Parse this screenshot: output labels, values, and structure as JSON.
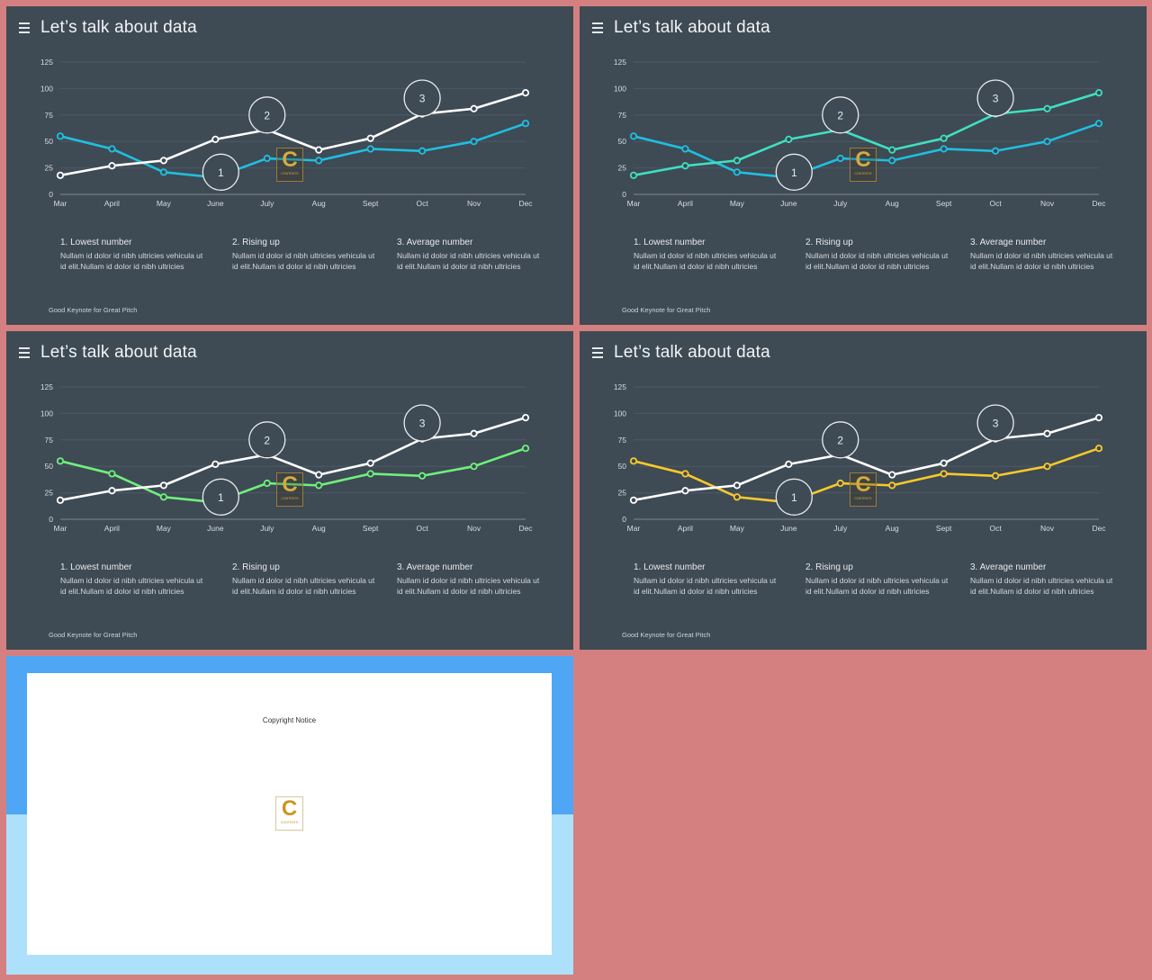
{
  "slides": [
    {
      "title": "Let’s talk about data",
      "footer": "Good Keynote for Great Pitch",
      "notes": [
        {
          "title": "1. Lowest number",
          "body": "Nullam id dolor id nibh ultricies vehicula ut id elit.Nullam id dolor id nibh ultricies"
        },
        {
          "title": "2. Rising up",
          "body": "Nullam id dolor id nibh ultricies vehicula ut id elit.Nullam id dolor id nibh ultricies"
        },
        {
          "title": "3. Average number",
          "body": "Nullam id dolor id nibh ultricies vehicula ut id elit.Nullam id dolor id nibh ultricies"
        }
      ],
      "logo": {
        "letter": "C",
        "text": "CONTENTS"
      }
    },
    {
      "title": "Let’s talk about data",
      "footer": "Good Keynote for Great Pitch",
      "notes": [
        {
          "title": "1. Lowest number",
          "body": "Nullam id dolor id nibh ultricies vehicula ut id elit.Nullam id dolor id nibh ultricies"
        },
        {
          "title": "2. Rising up",
          "body": "Nullam id dolor id nibh ultricies vehicula ut id elit.Nullam id dolor id nibh ultricies"
        },
        {
          "title": "3. Average number",
          "body": "Nullam id dolor id nibh ultricies vehicula ut id elit.Nullam id dolor id nibh ultricies"
        }
      ],
      "logo": {
        "letter": "C",
        "text": "CONTENTS"
      }
    },
    {
      "title": "Let’s talk about data",
      "footer": "Good Keynote for Great Pitch",
      "notes": [
        {
          "title": "1. Lowest number",
          "body": "Nullam id dolor id nibh ultricies vehicula ut id elit.Nullam id dolor id nibh ultricies"
        },
        {
          "title": "2. Rising up",
          "body": "Nullam id dolor id nibh ultricies vehicula ut id elit.Nullam id dolor id nibh ultricies"
        },
        {
          "title": "3. Average number",
          "body": "Nullam id dolor id nibh ultricies vehicula ut id elit.Nullam id dolor id nibh ultricies"
        }
      ],
      "logo": {
        "letter": "C",
        "text": "CONTENTS"
      }
    },
    {
      "title": "Let’s talk about data",
      "footer": "Good Keynote for Great Pitch",
      "notes": [
        {
          "title": "1. Lowest number",
          "body": "Nullam id dolor id nibh ultricies vehicula ut id elit.Nullam id dolor id nibh ultricies"
        },
        {
          "title": "2. Rising up",
          "body": "Nullam id dolor id nibh ultricies vehicula ut id elit.Nullam id dolor id nibh ultricies"
        },
        {
          "title": "3. Average number",
          "body": "Nullam id dolor id nibh ultricies vehicula ut id elit.Nullam id dolor id nibh ultricies"
        }
      ],
      "logo": {
        "letter": "C",
        "text": "CONTENTS"
      }
    }
  ],
  "copyright": {
    "title": "Copyright Notice",
    "logo": {
      "letter": "C",
      "text": "CONTENTS"
    }
  },
  "colors": {
    "page_background": "#d48080",
    "slide_background": "#3e4a54",
    "copyright_top": "#4ea6f4",
    "copyright_bottom": "#ade0fb"
  },
  "chart_data": [
    {
      "type": "line",
      "categories": [
        "Mar",
        "April",
        "May",
        "June",
        "July",
        "Aug",
        "Sept",
        "Oct",
        "Nov",
        "Dec"
      ],
      "yticks": [
        0,
        25,
        50,
        75,
        100,
        125
      ],
      "ylim": [
        0,
        125
      ],
      "grid": true,
      "series": [
        {
          "values": [
            18,
            27,
            32,
            52,
            61,
            42,
            53,
            76,
            81,
            96
          ],
          "color": "#ffffff"
        },
        {
          "values": [
            55,
            43,
            21,
            16,
            34,
            32,
            43,
            41,
            50,
            67
          ],
          "color": "#1fbfe0"
        }
      ],
      "annotations": [
        {
          "label": "1",
          "x": "June",
          "y": 21
        },
        {
          "label": "2",
          "x": "July",
          "y": 75
        },
        {
          "label": "3",
          "x": "Oct",
          "y": 91
        }
      ]
    },
    {
      "type": "line",
      "categories": [
        "Mar",
        "April",
        "May",
        "June",
        "July",
        "Aug",
        "Sept",
        "Oct",
        "Nov",
        "Dec"
      ],
      "yticks": [
        0,
        25,
        50,
        75,
        100,
        125
      ],
      "ylim": [
        0,
        125
      ],
      "grid": true,
      "series": [
        {
          "values": [
            18,
            27,
            32,
            52,
            61,
            42,
            53,
            76,
            81,
            96
          ],
          "color": "#3fe0c0"
        },
        {
          "values": [
            55,
            43,
            21,
            16,
            34,
            32,
            43,
            41,
            50,
            67
          ],
          "color": "#1fbfe0"
        }
      ],
      "annotations": [
        {
          "label": "1",
          "x": "June",
          "y": 21
        },
        {
          "label": "2",
          "x": "July",
          "y": 75
        },
        {
          "label": "3",
          "x": "Oct",
          "y": 91
        }
      ]
    },
    {
      "type": "line",
      "categories": [
        "Mar",
        "April",
        "May",
        "June",
        "July",
        "Aug",
        "Sept",
        "Oct",
        "Nov",
        "Dec"
      ],
      "yticks": [
        0,
        25,
        50,
        75,
        100,
        125
      ],
      "ylim": [
        0,
        125
      ],
      "grid": true,
      "series": [
        {
          "values": [
            18,
            27,
            32,
            52,
            61,
            42,
            53,
            76,
            81,
            96
          ],
          "color": "#ffffff"
        },
        {
          "values": [
            55,
            43,
            21,
            16,
            34,
            32,
            43,
            41,
            50,
            67
          ],
          "color": "#6ff07c"
        }
      ],
      "annotations": [
        {
          "label": "1",
          "x": "June",
          "y": 21
        },
        {
          "label": "2",
          "x": "July",
          "y": 75
        },
        {
          "label": "3",
          "x": "Oct",
          "y": 91
        }
      ]
    },
    {
      "type": "line",
      "categories": [
        "Mar",
        "April",
        "May",
        "June",
        "July",
        "Aug",
        "Sept",
        "Oct",
        "Nov",
        "Dec"
      ],
      "yticks": [
        0,
        25,
        50,
        75,
        100,
        125
      ],
      "ylim": [
        0,
        125
      ],
      "grid": true,
      "series": [
        {
          "values": [
            18,
            27,
            32,
            52,
            61,
            42,
            53,
            76,
            81,
            96
          ],
          "color": "#ffffff"
        },
        {
          "values": [
            55,
            43,
            21,
            16,
            34,
            32,
            43,
            41,
            50,
            67
          ],
          "color": "#f7c92a"
        }
      ],
      "annotations": [
        {
          "label": "1",
          "x": "June",
          "y": 21
        },
        {
          "label": "2",
          "x": "July",
          "y": 75
        },
        {
          "label": "3",
          "x": "Oct",
          "y": 91
        }
      ]
    }
  ]
}
